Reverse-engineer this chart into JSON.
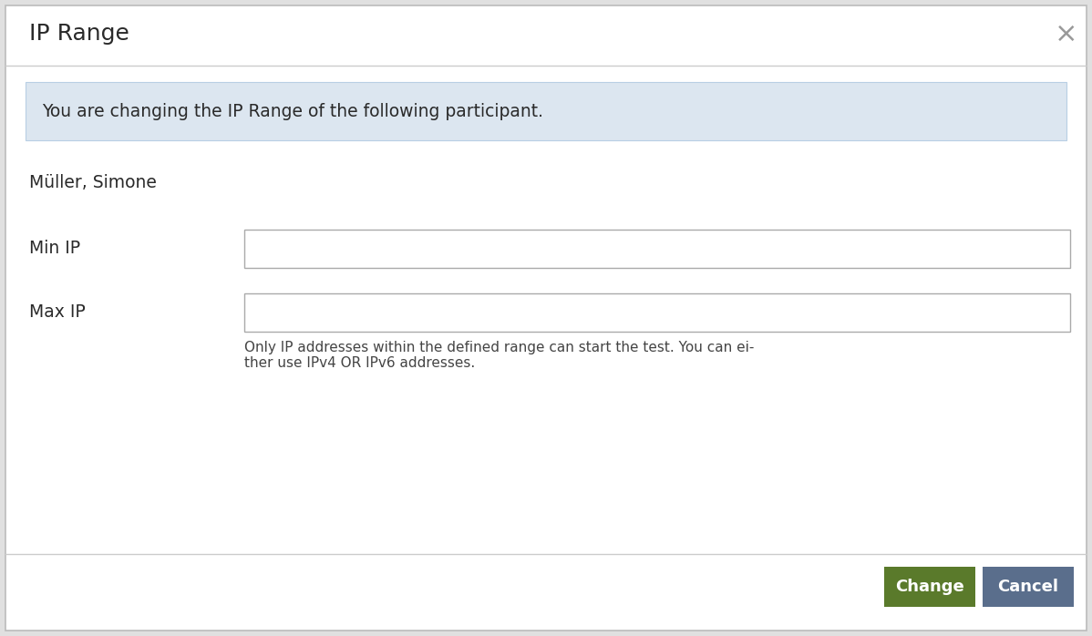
{
  "bg_color": "#ffffff",
  "modal_border_color": "#bbbbbb",
  "title": "IP Range",
  "title_fontsize": 18,
  "close_x": "×",
  "close_color": "#999999",
  "close_fontsize": 22,
  "info_box_bg": "#dce6f0",
  "info_box_border": "#b8cfe4",
  "info_text": "You are changing the IP Range of the following participant.",
  "info_fontsize": 13.5,
  "participant_name": "Müller, Simone",
  "participant_fontsize": 13.5,
  "label_min": "Min IP",
  "label_max": "Max IP",
  "label_fontsize": 13.5,
  "input_border_color": "#aaaaaa",
  "hint_text_line1": "Only IP addresses within the defined range can start the test. You can ei-",
  "hint_text_line2": "ther use IPv4 OR IPv6 addresses.",
  "hint_fontsize": 11,
  "hint_color": "#444444",
  "divider_color": "#cccccc",
  "btn_change_label": "Change",
  "btn_change_bg": "#5a7a2b",
  "btn_cancel_label": "Cancel",
  "btn_cancel_bg": "#5a6e8c",
  "btn_text_color": "#ffffff",
  "btn_fontsize": 13,
  "footer_bg": "#ffffff",
  "outer_bg": "#e0e0e0"
}
